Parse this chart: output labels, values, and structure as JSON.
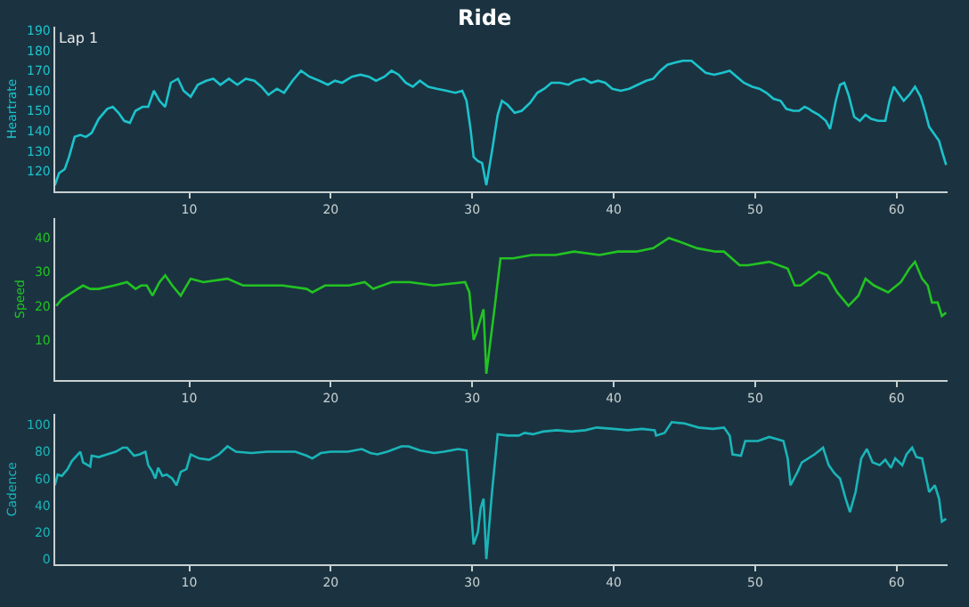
{
  "chart_data": [
    {
      "type": "line",
      "title": "Ride",
      "ylabel": "Heartrate",
      "annotations": [
        "Lap 1"
      ],
      "xlim": [
        0.5,
        63.6
      ],
      "xticks": [
        10,
        20,
        30,
        40,
        50,
        60
      ],
      "ylim": [
        110,
        192
      ],
      "yticks": [
        120,
        130,
        140,
        150,
        160,
        170,
        180,
        190
      ],
      "grid": false,
      "x": [
        0.5,
        0.8,
        1.2,
        1.5,
        1.9,
        2.3,
        2.7,
        3.1,
        3.6,
        4.2,
        4.6,
        5.0,
        5.4,
        5.8,
        6.2,
        6.7,
        7.1,
        7.5,
        7.9,
        8.3,
        8.7,
        9.2,
        9.6,
        10.1,
        10.6,
        11.2,
        11.7,
        12.2,
        12.8,
        13.4,
        14.0,
        14.6,
        15.1,
        15.6,
        16.2,
        16.7,
        17.3,
        17.9,
        18.5,
        19.2,
        19.8,
        20.3,
        20.8,
        21.5,
        22.1,
        22.7,
        23.2,
        23.8,
        24.3,
        24.8,
        25.3,
        25.8,
        26.3,
        26.9,
        27.5,
        28.2,
        28.8,
        29.3,
        29.6,
        29.9,
        30.1,
        30.4,
        30.7,
        31.0,
        31.4,
        31.8,
        32.1,
        32.5,
        33.0,
        33.5,
        34.1,
        34.6,
        35.1,
        35.6,
        36.2,
        36.8,
        37.3,
        37.9,
        38.4,
        38.9,
        39.4,
        39.9,
        40.5,
        41.1,
        41.7,
        42.3,
        42.8,
        43.3,
        43.8,
        44.3,
        44.9,
        45.5,
        46.0,
        46.5,
        47.1,
        47.7,
        48.2,
        48.7,
        49.2,
        49.8,
        50.3,
        50.8,
        51.3,
        51.8,
        52.2,
        52.7,
        53.1,
        53.5,
        53.8,
        54.0,
        54.5,
        55.0,
        55.3,
        55.7,
        56.0,
        56.3,
        56.6,
        57.0,
        57.4,
        57.8,
        58.2,
        58.7,
        59.2,
        59.5,
        59.8,
        60.2,
        60.5,
        60.9,
        61.3,
        61.7,
        62.0,
        62.3,
        62.7,
        63.0,
        63.2,
        63.5
      ],
      "series": [
        {
          "color": "#1cc3cc",
          "values": [
            113,
            119,
            121,
            127,
            137,
            138,
            137,
            139,
            146,
            151,
            152,
            149,
            145,
            144,
            150,
            152,
            152,
            160,
            155,
            152,
            164,
            166,
            160,
            157,
            163,
            165,
            166,
            163,
            166,
            163,
            166,
            165,
            162,
            158,
            161,
            159,
            165,
            170,
            167,
            165,
            163,
            165,
            164,
            167,
            168,
            167,
            165,
            167,
            170,
            168,
            164,
            162,
            165,
            162,
            161,
            160,
            159,
            160,
            155,
            140,
            127,
            125,
            124,
            113,
            130,
            148,
            155,
            153,
            149,
            150,
            154,
            159,
            161,
            164,
            164,
            163,
            165,
            166,
            164,
            165,
            164,
            161,
            160,
            161,
            163,
            165,
            166,
            170,
            173,
            174,
            175,
            175,
            172,
            169,
            168,
            169,
            170,
            167,
            164,
            162,
            161,
            159,
            156,
            155,
            151,
            150,
            150,
            152,
            151,
            150,
            148,
            145,
            141,
            155,
            163,
            164,
            158,
            147,
            145,
            148,
            146,
            145,
            145,
            155,
            162,
            158,
            155,
            158,
            162,
            157,
            150,
            142,
            138,
            135,
            130,
            123
          ]
        }
      ]
    },
    {
      "type": "line",
      "ylabel": "Speed",
      "xlim": [
        0.5,
        63.6
      ],
      "xticks": [
        10,
        20,
        30,
        40,
        50,
        60
      ],
      "ylim": [
        -2,
        46
      ],
      "yticks": [
        10,
        20,
        30,
        40
      ],
      "grid": false,
      "x": [
        0.6,
        1.0,
        2.1,
        2.5,
        3.0,
        3.6,
        4.7,
        5.6,
        6.2,
        6.6,
        7.0,
        7.4,
        7.9,
        8.3,
        8.8,
        9.4,
        10.1,
        11.0,
        12.7,
        13.8,
        15.3,
        16.6,
        18.3,
        18.7,
        19.6,
        21.3,
        22.4,
        23.0,
        24.3,
        25.6,
        27.3,
        29.5,
        29.8,
        30.1,
        30.3,
        30.8,
        31.0,
        31.6,
        32.0,
        32.9,
        34.2,
        35.9,
        37.2,
        39.0,
        40.3,
        41.6,
        42.8,
        43.9,
        44.6,
        45.9,
        47.2,
        47.8,
        48.9,
        49.5,
        51.0,
        52.3,
        52.8,
        53.2,
        54.5,
        55.1,
        55.8,
        56.6,
        57.3,
        57.8,
        58.4,
        59.4,
        60.3,
        60.9,
        61.3,
        61.8,
        62.2,
        62.5,
        62.9,
        63.2,
        63.5
      ],
      "series": [
        {
          "color": "#22c322",
          "values": [
            20,
            22,
            25,
            26,
            25,
            25,
            26,
            27,
            25,
            26,
            26,
            23,
            27,
            29,
            26,
            23,
            28,
            27,
            28,
            26,
            26,
            26,
            25,
            24,
            26,
            26,
            27,
            25,
            27,
            27,
            26,
            27,
            24,
            10,
            12,
            19,
            0,
            20,
            34,
            34,
            35,
            35,
            36,
            35,
            36,
            36,
            37,
            40,
            39,
            37,
            36,
            36,
            32,
            32,
            33,
            31,
            26,
            26,
            30,
            29,
            24,
            20,
            23,
            28,
            26,
            24,
            27,
            31,
            33,
            28,
            26,
            21,
            21,
            17,
            18
          ]
        }
      ]
    },
    {
      "type": "line",
      "ylabel": "Cadence",
      "xlim": [
        0.5,
        63.6
      ],
      "xticks": [
        10,
        20,
        30,
        40,
        50,
        60
      ],
      "ylim": [
        -4,
        108
      ],
      "yticks": [
        0,
        20,
        40,
        60,
        80,
        100
      ],
      "grid": false,
      "x": [
        0.5,
        0.7,
        1.0,
        1.4,
        1.7,
        2.3,
        2.5,
        3.0,
        3.1,
        3.6,
        4.2,
        4.8,
        5.3,
        5.6,
        6.1,
        6.5,
        6.9,
        7.1,
        7.4,
        7.6,
        7.8,
        8.1,
        8.4,
        8.8,
        9.1,
        9.4,
        9.8,
        10.1,
        10.7,
        11.4,
        12.1,
        12.7,
        13.3,
        14.4,
        15.5,
        16.5,
        17.5,
        18.3,
        18.7,
        19.3,
        20.0,
        21.2,
        22.2,
        22.8,
        23.3,
        24.0,
        25.0,
        25.5,
        26.3,
        27.3,
        28.0,
        29.0,
        29.6,
        29.9,
        30.1,
        30.4,
        30.6,
        30.8,
        31.0,
        31.4,
        31.8,
        32.5,
        33.3,
        33.7,
        34.3,
        35.0,
        36.0,
        37.0,
        38.0,
        38.8,
        40.0,
        41.0,
        42.0,
        42.9,
        43.0,
        43.6,
        44.1,
        45.0,
        46.0,
        47.0,
        47.8,
        48.2,
        48.4,
        49.0,
        49.3,
        50.2,
        51.0,
        52.0,
        52.3,
        52.5,
        53.0,
        53.3,
        54.2,
        54.8,
        55.2,
        55.6,
        56.0,
        56.4,
        56.7,
        57.1,
        57.5,
        57.9,
        58.3,
        58.8,
        59.2,
        59.6,
        59.9,
        60.4,
        60.7,
        61.1,
        61.4,
        61.8,
        62.1,
        62.3,
        62.7,
        63.0,
        63.2,
        63.5
      ],
      "series": [
        {
          "color": "#1ab5b8",
          "values": [
            55,
            63,
            62,
            67,
            73,
            80,
            72,
            69,
            77,
            76,
            78,
            80,
            83,
            83,
            77,
            78,
            80,
            70,
            65,
            60,
            68,
            62,
            63,
            60,
            55,
            65,
            67,
            78,
            75,
            74,
            78,
            84,
            80,
            79,
            80,
            80,
            80,
            77,
            75,
            79,
            80,
            80,
            82,
            79,
            78,
            80,
            84,
            84,
            81,
            79,
            80,
            82,
            81,
            40,
            11,
            20,
            38,
            45,
            0,
            50,
            93,
            92,
            92,
            94,
            93,
            95,
            96,
            95,
            96,
            98,
            97,
            96,
            97,
            96,
            92,
            94,
            102,
            101,
            98,
            97,
            98,
            92,
            78,
            77,
            88,
            88,
            91,
            88,
            75,
            55,
            65,
            72,
            78,
            83,
            70,
            64,
            60,
            45,
            35,
            50,
            75,
            82,
            72,
            70,
            74,
            68,
            75,
            70,
            78,
            83,
            76,
            75,
            60,
            50,
            55,
            45,
            28,
            30
          ]
        }
      ]
    }
  ]
}
